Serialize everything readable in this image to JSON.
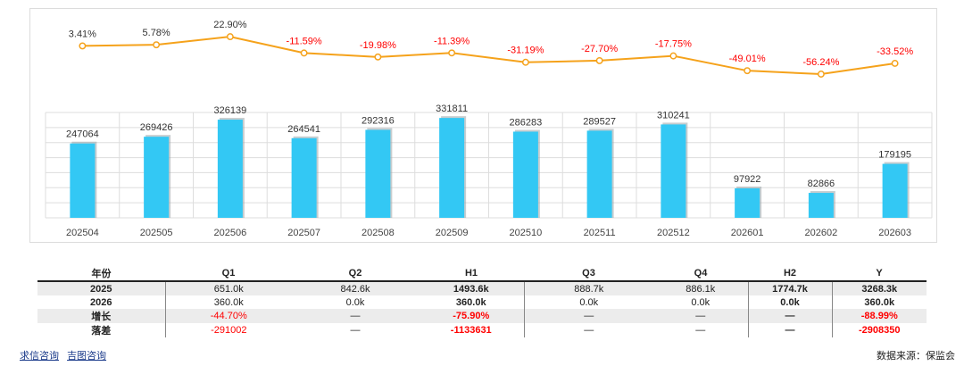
{
  "chart_data": {
    "type": "bar+line",
    "categories": [
      "202504",
      "202505",
      "202506",
      "202507",
      "202508",
      "202509",
      "202510",
      "202511",
      "202512",
      "202601",
      "202602",
      "202603"
    ],
    "bar_series": {
      "name": "value",
      "values": [
        247064,
        269426,
        326139,
        264541,
        292316,
        331811,
        286283,
        289527,
        310241,
        97922,
        82866,
        179195
      ]
    },
    "line_series": {
      "name": "growth",
      "values": [
        3.41,
        5.78,
        22.9,
        -11.59,
        -19.98,
        -11.39,
        -31.19,
        -27.7,
        -17.75,
        -49.01,
        -56.24,
        -33.52
      ],
      "labels": [
        "3.41%",
        "5.78%",
        "22.90%",
        "-11.59%",
        "-19.98%",
        "-11.39%",
        "-31.19%",
        "-27.70%",
        "-17.75%",
        "-49.01%",
        "-56.24%",
        "-33.52%"
      ]
    },
    "bar_ylim": [
      0,
      350000
    ],
    "line_ylim": [
      -60,
      25
    ],
    "colors": {
      "bar": "#33c8f4",
      "bar_shadow": "#9aa4a8",
      "line": "#f5a21b",
      "positive_label": "#333333",
      "negative_label": "#ff0000",
      "grid": "#dddddd"
    }
  },
  "table": {
    "headers": [
      "年份",
      "Q1",
      "Q2",
      "H1",
      "Q3",
      "Q4",
      "H2",
      "Y"
    ],
    "rows": [
      {
        "label": "2025",
        "cells": [
          "651.0k",
          "842.6k",
          "1493.6k",
          "888.7k",
          "886.1k",
          "1774.7k",
          "3268.3k"
        ]
      },
      {
        "label": "2026",
        "cells": [
          "360.0k",
          "0.0k",
          "360.0k",
          "0.0k",
          "0.0k",
          "0.0k",
          "360.0k"
        ]
      },
      {
        "label": "增长",
        "cells": [
          "-44.70%",
          "—",
          "-75.90%",
          "—",
          "—",
          "—",
          "-88.99%"
        ]
      },
      {
        "label": "落差",
        "cells": [
          "-291002",
          "—",
          "-1133631",
          "—",
          "—",
          "—",
          "-2908350"
        ]
      }
    ]
  },
  "footer": {
    "link1": "求信咨询",
    "link2": "吉图咨询",
    "source": "数据来源：保监会"
  }
}
